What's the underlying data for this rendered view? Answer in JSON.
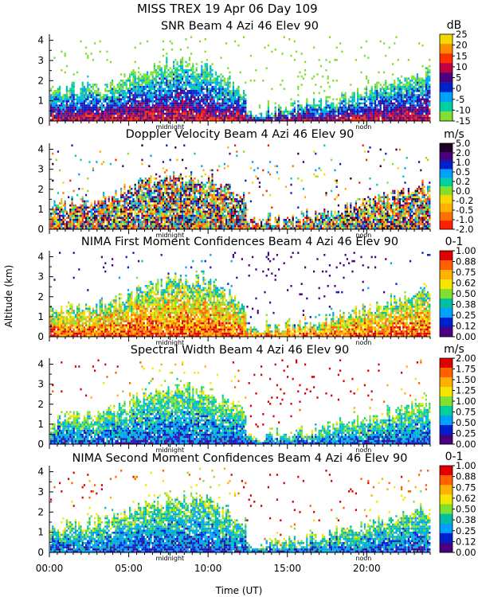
{
  "header": {
    "line1": "MISS TREX    19 Apr 06 Day 109"
  },
  "x_axis": {
    "label": "Time (UT)",
    "tick_labels": [
      "00:00",
      "05:00",
      "10:00",
      "15:00",
      "20:00"
    ],
    "tick_hours": [
      0,
      5,
      10,
      15,
      20
    ],
    "range_hours": [
      0,
      24
    ],
    "markers": [
      {
        "label": "midnight",
        "hour": 7.6
      },
      {
        "label": "noon",
        "hour": 19.8
      }
    ]
  },
  "y_axis": {
    "label": "Altitude (km)",
    "range_km": [
      0,
      4.3
    ],
    "ticks": [
      "0",
      "1",
      "2",
      "3",
      "4"
    ]
  },
  "chart_data": [
    {
      "type": "heatmap",
      "title": "SNR Beam 4 Azi  46 Elev 90",
      "unit": "dB",
      "colorbar_labels": [
        "25",
        "20",
        "15",
        "10",
        "5",
        "0",
        "-5",
        "-10",
        "-15"
      ],
      "colors": [
        "#f5d800",
        "#ff8c00",
        "#ff3000",
        "#c00040",
        "#4a0080",
        "#0020d0",
        "#00a0ff",
        "#00d0a0",
        "#80e030"
      ],
      "xlabel": "Time (UT)",
      "ylabel": "Altitude (km)",
      "xlim": [
        0,
        24
      ],
      "ylim": [
        0,
        4.3
      ],
      "echo_profile": {
        "hours": [
          0,
          3.5,
          6,
          8,
          10,
          12.5,
          14,
          16,
          18,
          20,
          22,
          24
        ],
        "top_km": [
          1.6,
          1.8,
          2.6,
          3.0,
          2.8,
          1.4,
          0.6,
          0.8,
          1.1,
          1.5,
          2.0,
          2.6
        ]
      }
    },
    {
      "type": "heatmap",
      "title": "Doppler Velocity Beam 4 Azi  46 Elev 90",
      "unit": "m/s",
      "colorbar_labels": [
        "5.0",
        "2.0",
        "1.0",
        "0.5",
        "0.2",
        "0.0",
        "-0.2",
        "-0.5",
        "-1.0",
        "-2.0"
      ],
      "colors": [
        "#200020",
        "#4a0080",
        "#0020d0",
        "#00a0ff",
        "#00d0a0",
        "#80e030",
        "#f5d800",
        "#ffb000",
        "#ff7000",
        "#ff2000"
      ],
      "xlabel": "Time (UT)",
      "ylabel": "Altitude (km)",
      "xlim": [
        0,
        24
      ],
      "ylim": [
        0,
        4.3
      ],
      "echo_profile": {
        "hours": [
          0,
          3.5,
          6,
          8,
          10,
          12.5,
          14,
          16,
          18,
          20,
          22,
          24
        ],
        "top_km": [
          1.2,
          1.6,
          2.4,
          2.8,
          2.6,
          1.6,
          0.4,
          0.6,
          1.0,
          1.4,
          1.9,
          2.4
        ]
      }
    },
    {
      "type": "heatmap",
      "title": "NIMA First Moment Confidences Beam 4 Azi  46 Elev 90",
      "unit": "0-1",
      "colorbar_labels": [
        "1.00",
        "0.88",
        "0.75",
        "0.62",
        "0.50",
        "0.38",
        "0.25",
        "0.12",
        "0.00"
      ],
      "colors": [
        "#e00000",
        "#ff6000",
        "#ffb000",
        "#f5e600",
        "#80e030",
        "#00c0a0",
        "#00a0ff",
        "#0020d0",
        "#4a0080"
      ],
      "xlabel": "Time (UT)",
      "ylabel": "Altitude (km)",
      "xlim": [
        0,
        24
      ],
      "ylim": [
        0,
        4.3
      ],
      "echo_profile": {
        "hours": [
          0,
          3.5,
          6,
          8,
          10,
          12.5,
          14,
          16,
          18,
          20,
          22,
          24
        ],
        "top_km": [
          1.3,
          1.7,
          2.5,
          2.9,
          2.7,
          1.5,
          0.5,
          0.7,
          1.0,
          1.4,
          2.0,
          2.5
        ]
      }
    },
    {
      "type": "heatmap",
      "title": "Spectral Width Beam 4 Azi  46 Elev 90",
      "unit": "m/s",
      "colorbar_labels": [
        "2.00",
        "1.75",
        "1.50",
        "1.25",
        "1.00",
        "0.75",
        "0.50",
        "0.25",
        "0.00"
      ],
      "colors": [
        "#e00000",
        "#ff6000",
        "#ffb000",
        "#f5e600",
        "#80e030",
        "#00d0a0",
        "#00a0ff",
        "#0020d0",
        "#4a0080"
      ],
      "xlabel": "Time (UT)",
      "ylabel": "Altitude (km)",
      "xlim": [
        0,
        24
      ],
      "ylim": [
        0,
        4.3
      ],
      "echo_profile": {
        "hours": [
          0,
          3.5,
          6,
          8,
          10,
          12.5,
          14,
          16,
          18,
          20,
          22,
          24
        ],
        "top_km": [
          1.2,
          1.6,
          2.5,
          2.9,
          2.6,
          1.4,
          0.5,
          0.7,
          1.0,
          1.3,
          1.8,
          2.2
        ]
      }
    },
    {
      "type": "heatmap",
      "title": "NIMA Second Moment Confidences Beam 4 Azi  46 Elev 90",
      "unit": "0-1",
      "colorbar_labels": [
        "1.00",
        "0.88",
        "0.75",
        "0.62",
        "0.50",
        "0.38",
        "0.25",
        "0.12",
        "0.00"
      ],
      "colors": [
        "#e00000",
        "#ff6000",
        "#ffb000",
        "#f5e600",
        "#80e030",
        "#00c0a0",
        "#00a0ff",
        "#0020d0",
        "#4a0080"
      ],
      "xlabel": "Time (UT)",
      "ylabel": "Altitude (km)",
      "xlim": [
        0,
        24
      ],
      "ylim": [
        0,
        4.3
      ],
      "echo_profile": {
        "hours": [
          0,
          3.5,
          6,
          8,
          10,
          12.5,
          14,
          16,
          18,
          20,
          22,
          24
        ],
        "top_km": [
          1.2,
          1.6,
          2.4,
          2.8,
          2.6,
          1.4,
          0.5,
          0.7,
          1.0,
          1.4,
          1.9,
          2.3
        ]
      }
    }
  ]
}
